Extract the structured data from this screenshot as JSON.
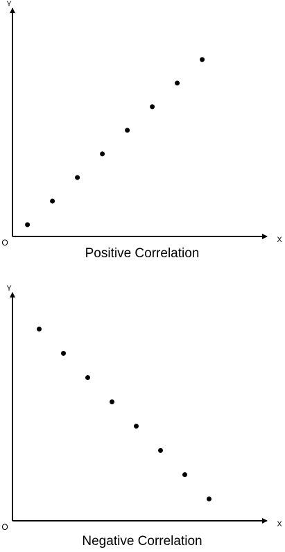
{
  "chart_data": [
    {
      "type": "scatter",
      "title": "Positive Correlation",
      "x_label": "X",
      "y_label": "Y",
      "origin_label": "O",
      "x": [
        0.6,
        1.6,
        2.6,
        3.6,
        4.6,
        5.6,
        6.6,
        7.6
      ],
      "y": [
        0.5,
        1.5,
        2.5,
        3.5,
        4.5,
        5.5,
        6.5,
        7.5
      ],
      "xlim": [
        0,
        10
      ],
      "ylim": [
        0,
        9.7
      ],
      "color": "#000000"
    },
    {
      "type": "scatter",
      "title": "Negative Correlation",
      "x_label": "X",
      "y_label": "Y",
      "origin_label": "O",
      "x": [
        1.1,
        2.1,
        3.1,
        4.1,
        5.1,
        6.1,
        7.1,
        8.1
      ],
      "y": [
        7.9,
        6.9,
        5.9,
        4.9,
        3.9,
        2.9,
        1.9,
        0.9
      ],
      "xlim": [
        0,
        10
      ],
      "ylim": [
        0,
        9.4
      ],
      "color": "#000000"
    }
  ]
}
